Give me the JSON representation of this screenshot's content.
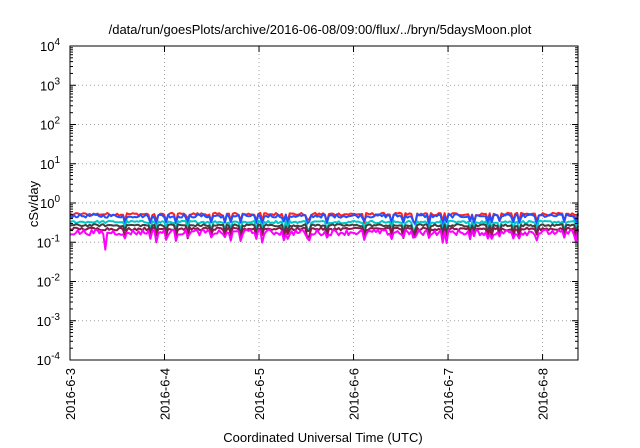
{
  "chart_data": {
    "type": "line",
    "title": "/data/run/goesPlots/archive/2016-06-08/09:00/flux/../bryn/5daysMoon.plot",
    "xlabel": "Coordinated Universal Time (UTC)",
    "ylabel": "cSv/day",
    "yscale": "log",
    "ylim": [
      0.0001,
      10000
    ],
    "y_ticks": [
      {
        "value": 0.0001,
        "base": "10",
        "exp": "-4"
      },
      {
        "value": 0.001,
        "base": "10",
        "exp": "-3"
      },
      {
        "value": 0.01,
        "base": "10",
        "exp": "-2"
      },
      {
        "value": 0.1,
        "base": "10",
        "exp": "-1"
      },
      {
        "value": 1,
        "base": "10",
        "exp": "0"
      },
      {
        "value": 10,
        "base": "10",
        "exp": "1"
      },
      {
        "value": 100,
        "base": "10",
        "exp": "2"
      },
      {
        "value": 1000,
        "base": "10",
        "exp": "3"
      },
      {
        "value": 10000,
        "base": "10",
        "exp": "4"
      }
    ],
    "x_ticks": [
      "2016-6-3",
      "2016-6-4",
      "2016-6-5",
      "2016-6-6",
      "2016-6-7",
      "2016-6-8"
    ],
    "xlim": [
      "2016-06-03T00:00",
      "2016-06-08T09:00"
    ],
    "grid": true,
    "legend": "none",
    "series": [
      {
        "color": "#ff2020",
        "base_value": 0.52,
        "spread": 0.07
      },
      {
        "color": "#2050ff",
        "base_value": 0.47,
        "spread": 0.08
      },
      {
        "color": "#00c8c8",
        "base_value": 0.33,
        "spread": 0.04
      },
      {
        "color": "#404040",
        "base_value": 0.27,
        "spread": 0.03
      },
      {
        "color": "#8b1a4a",
        "base_value": 0.22,
        "spread": 0.03
      },
      {
        "color": "#ff00ff",
        "base_value": 0.18,
        "spread": 0.05,
        "min_value": 0.065
      }
    ]
  }
}
